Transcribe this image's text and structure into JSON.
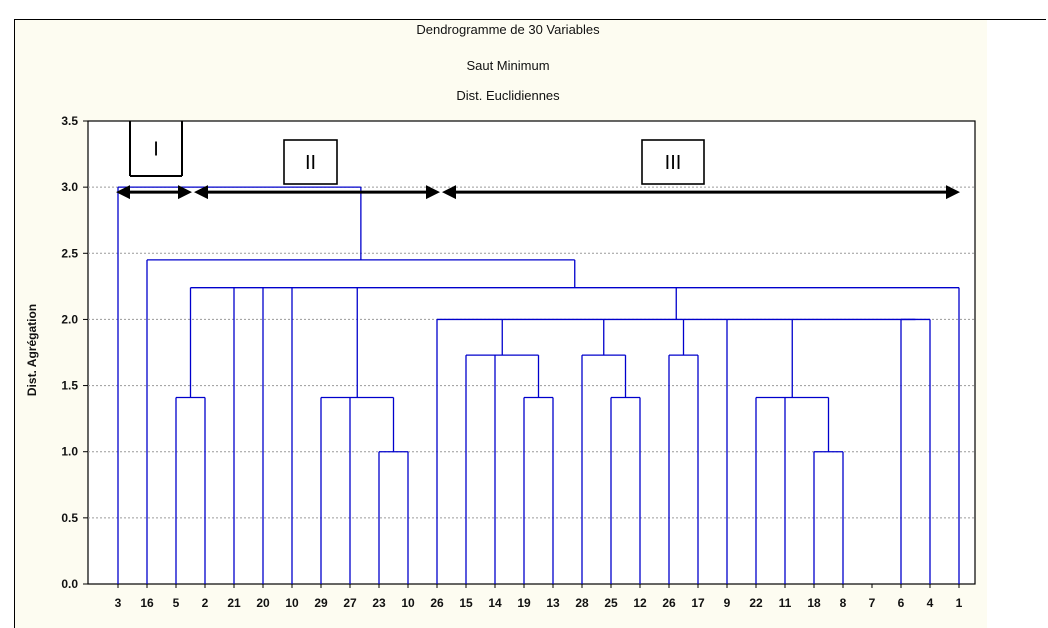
{
  "chart_data": {
    "type": "dendrogram",
    "title": "Dendrogramme de 30 Variables",
    "subtitle_1": "Saut Minimum",
    "subtitle_2": "Dist. Euclidiennes",
    "ylabel": "Dist. Agrégation",
    "xlabel": "",
    "ylim": [
      0,
      3.5
    ],
    "yticks": [
      "0.0",
      "0.5",
      "1.0",
      "1.5",
      "2.0",
      "2.5",
      "3.0",
      "3.5"
    ],
    "grid": true,
    "leaves": [
      "3",
      "16",
      "5",
      "2",
      "21",
      "20",
      "10",
      "29",
      "27",
      "23",
      "10",
      "26",
      "15",
      "14",
      "19",
      "13",
      "28",
      "25",
      "12",
      "26",
      "17",
      "9",
      "22",
      "11",
      "18",
      "8",
      "7",
      "6",
      "4",
      "1"
    ],
    "merges": [
      {
        "left": "2",
        "right": "5",
        "height": 1.41
      },
      {
        "left": "23",
        "right": "10",
        "height": 1.0
      },
      {
        "left": "29",
        "right": "27|23|10",
        "height": 1.41
      },
      {
        "left": "19",
        "right": "13",
        "height": 1.41
      },
      {
        "left": "15",
        "right": "14|19|13",
        "height": 1.73
      },
      {
        "left": "25",
        "right": "12",
        "height": 1.41
      },
      {
        "left": "28",
        "right": "25|12",
        "height": 1.73
      },
      {
        "left": "26",
        "right": "17",
        "height": 1.73
      },
      {
        "left": "18",
        "right": "8",
        "height": 1.0
      },
      {
        "left": "22",
        "right": "11|18|8",
        "height": 1.41
      },
      {
        "left": "26 … 4",
        "right": "all",
        "height": 2.0
      },
      {
        "left": "cluster II",
        "right": "cluster III",
        "height": 2.24
      },
      {
        "left": "16",
        "right": "rest",
        "height": 2.45
      },
      {
        "left": "3",
        "right": "rest",
        "height": 3.0
      }
    ],
    "groups": [
      {
        "label": "I",
        "from_leaf": 1,
        "to_leaf": 3
      },
      {
        "label": "II",
        "from_leaf": 3,
        "to_leaf": 12
      },
      {
        "label": "III",
        "from_leaf": 12,
        "to_leaf": 30
      }
    ],
    "colors": {
      "links": "#0000cc",
      "axis": "#000000",
      "grid": "#9a9a9a",
      "arrow": "#000000"
    }
  }
}
